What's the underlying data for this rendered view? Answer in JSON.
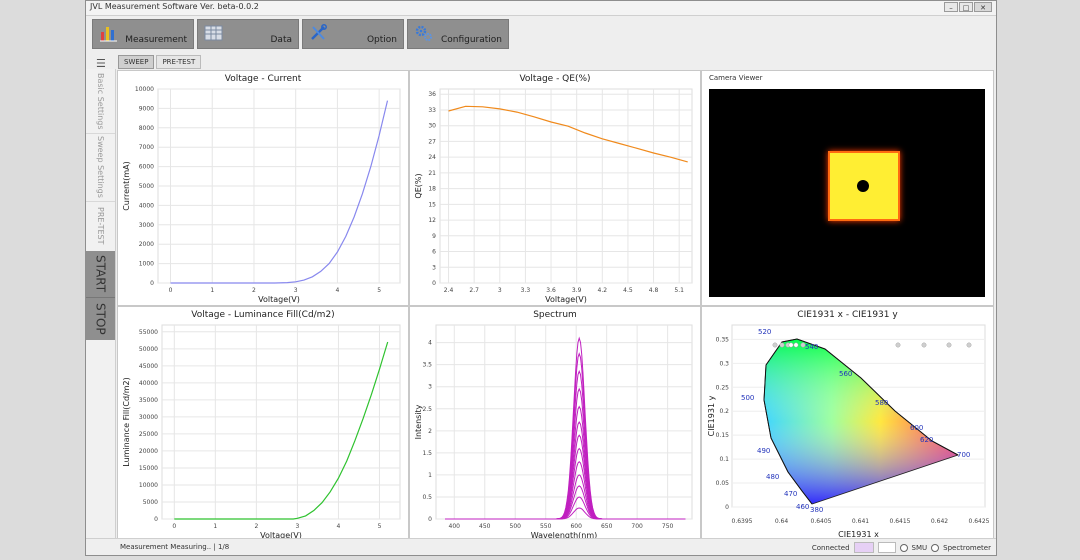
{
  "window": {
    "title": "JVL Measurement Software Ver. beta-0.0.2"
  },
  "toolbar": [
    {
      "label": "Measurement",
      "icon": "bar-chart-icon"
    },
    {
      "label": "Data",
      "icon": "table-icon"
    },
    {
      "label": "Option",
      "icon": "tools-icon"
    },
    {
      "label": "Configuration",
      "icon": "gears-icon"
    }
  ],
  "subtabs": [
    "SWEEP",
    "PRE-TEST"
  ],
  "sidebar": {
    "items": [
      "Basic Settings",
      "Sweep Settings",
      "PRE-TEST"
    ],
    "start": "START",
    "stop": "STOP"
  },
  "camera": {
    "title": "Camera Viewer"
  },
  "status": {
    "message": "Measurement Measuring.. | 1/8",
    "connected": "Connected",
    "smu": "SMU",
    "spectrometer": "Spectrometer"
  },
  "colors": {
    "iv": "#8888ee",
    "qe": "#f08a1c",
    "lum": "#2ec22e",
    "spectrum": "#c020c0"
  },
  "chart_data": [
    {
      "type": "line",
      "title": "Voltage - Current",
      "xlabel": "Voltage(V)",
      "ylabel": "Current(mA)",
      "xlim": [
        -0.3,
        5.5
      ],
      "ylim": [
        0,
        10000
      ],
      "xticks": [
        0,
        1,
        2,
        3,
        4,
        5
      ],
      "yticks": [
        0,
        1000,
        2000,
        3000,
        4000,
        5000,
        6000,
        7000,
        8000,
        9000,
        10000
      ],
      "x": [
        0,
        2.5,
        2.8,
        3.0,
        3.2,
        3.4,
        3.6,
        3.8,
        4.0,
        4.2,
        4.4,
        4.6,
        4.8,
        5.0,
        5.2
      ],
      "y": [
        0,
        0,
        20,
        60,
        150,
        320,
        600,
        1000,
        1600,
        2400,
        3400,
        4600,
        6000,
        7600,
        9400
      ]
    },
    {
      "type": "line",
      "title": "Voltage - QE(%)",
      "xlabel": "Voltage(V)",
      "ylabel": "QE(%)",
      "xlim": [
        2.3,
        5.25
      ],
      "ylim": [
        0,
        37
      ],
      "xticks": [
        2.4,
        2.7,
        3,
        3.3,
        3.6,
        3.9,
        4.2,
        4.5,
        4.8,
        5.1
      ],
      "yticks": [
        0,
        3,
        6,
        9,
        12,
        15,
        18,
        21,
        24,
        27,
        30,
        33,
        36
      ],
      "x": [
        2.4,
        2.6,
        2.8,
        3.0,
        3.2,
        3.4,
        3.6,
        3.8,
        4.0,
        4.2,
        4.4,
        4.6,
        4.8,
        5.0,
        5.2
      ],
      "y": [
        32.8,
        33.7,
        33.6,
        33.2,
        32.6,
        31.7,
        30.7,
        29.9,
        28.6,
        27.5,
        26.6,
        25.7,
        24.8,
        24.0,
        23.1
      ]
    },
    {
      "type": "line",
      "title": "Voltage - Luminance Fill(Cd/m2)",
      "xlabel": "Voltage(V)",
      "ylabel": "Luminance Fill(Cd/m2)",
      "xlim": [
        -0.3,
        5.5
      ],
      "ylim": [
        0,
        57000
      ],
      "xticks": [
        0,
        1,
        2,
        3,
        4,
        5
      ],
      "yticks": [
        0,
        5000,
        10000,
        15000,
        20000,
        25000,
        30000,
        35000,
        40000,
        45000,
        50000,
        55000
      ],
      "x": [
        0,
        2.5,
        2.9,
        3.0,
        3.2,
        3.4,
        3.6,
        3.8,
        4.0,
        4.2,
        4.4,
        4.6,
        4.8,
        5.0,
        5.2
      ],
      "y": [
        0,
        0,
        0,
        200,
        900,
        2500,
        4800,
        8000,
        12000,
        17000,
        23000,
        29500,
        36500,
        44000,
        52000
      ]
    },
    {
      "type": "line",
      "title": "Spectrum",
      "xlabel": "Wavelength(nm)",
      "ylabel": "Intensity",
      "xlim": [
        370,
        790
      ],
      "ylim": [
        0,
        4.4
      ],
      "xticks": [
        400,
        450,
        500,
        550,
        600,
        650,
        700,
        750
      ],
      "yticks": [
        0,
        0.5,
        1,
        1.5,
        2,
        2.5,
        3,
        3.5,
        4
      ],
      "peak_nm": 605,
      "fwhm_nm": 22,
      "peaks": [
        0.25,
        0.5,
        0.75,
        1.0,
        1.3,
        1.6,
        1.9,
        2.2,
        2.55,
        2.95,
        3.35,
        3.75,
        4.1
      ]
    },
    {
      "type": "scatter",
      "title": "CIE1931 x - CIE1931 y",
      "xlabel": "CIE1931 x",
      "ylabel": "CIE1931 y",
      "xticks": [
        0.6395,
        0.64,
        0.6405,
        0.641,
        0.6415,
        0.642,
        0.6425
      ],
      "yticks": [
        0,
        0.05,
        0.1,
        0.15,
        0.2,
        0.25,
        0.3,
        0.35
      ],
      "wavelength_labels": [
        460,
        470,
        480,
        490,
        500,
        520,
        540,
        560,
        580,
        600,
        620,
        700,
        380
      ]
    }
  ]
}
